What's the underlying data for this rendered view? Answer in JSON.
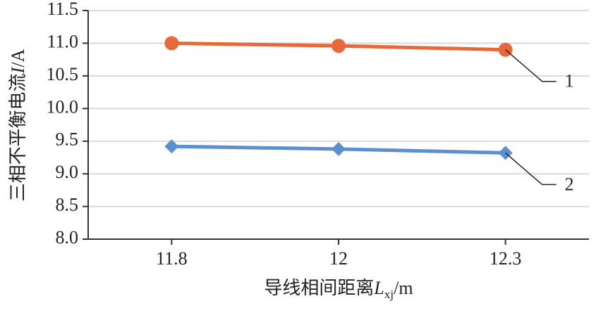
{
  "chart_data": {
    "type": "line",
    "y_label": [
      "三相不平衡电流",
      "I",
      "/A"
    ],
    "x_label": [
      "导线相间距离",
      "L",
      "xj",
      "/m"
    ],
    "categories": [
      "11.8",
      "12",
      "12.3"
    ],
    "series": [
      {
        "name": "1",
        "color": "#e8683a",
        "marker": "circle",
        "values": [
          11.0,
          10.96,
          10.9
        ]
      },
      {
        "name": "2",
        "color": "#5b8fd0",
        "marker": "diamond",
        "values": [
          9.42,
          9.38,
          9.32
        ]
      }
    ],
    "ylim": [
      8.0,
      11.5
    ],
    "yticks": [
      {
        "value": 8,
        "label": "8.0"
      },
      8.5,
      {
        "value": 9,
        "label": "9.0"
      },
      9.5,
      {
        "value": 10,
        "label": "10.0"
      },
      10.5,
      {
        "value": 11,
        "label": "11.0"
      },
      11.5
    ],
    "grid": true
  }
}
